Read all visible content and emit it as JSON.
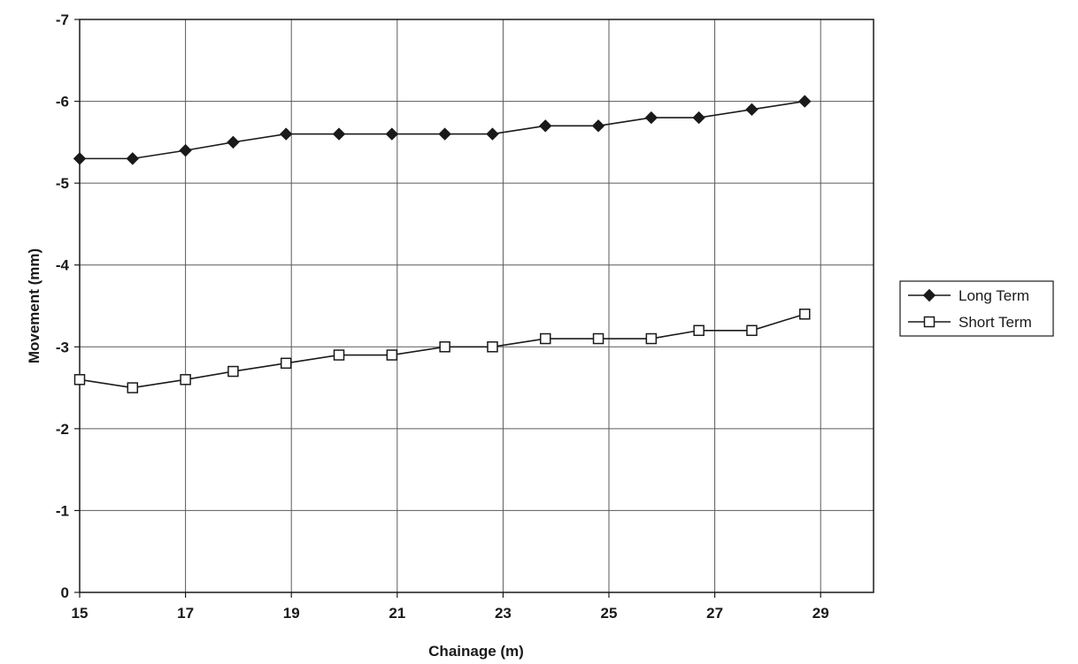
{
  "chart_data": {
    "type": "line",
    "title": "",
    "xlabel": "Chainage (m)",
    "ylabel": "Movement (mm)",
    "xlim": [
      15,
      30
    ],
    "ylim": [
      0,
      -7
    ],
    "x_ticks": [
      15,
      17,
      19,
      21,
      23,
      25,
      27,
      29
    ],
    "y_ticks": [
      0,
      -1,
      -2,
      -3,
      -4,
      -5,
      -6,
      -7
    ],
    "y_reversed": true,
    "grid": true,
    "legend_placement": "right",
    "series": [
      {
        "name": "Long Term",
        "marker": "filled-diamond",
        "color": "#1a1a1a",
        "x": [
          15,
          16,
          17,
          17.9,
          18.9,
          19.9,
          20.9,
          21.9,
          22.8,
          23.8,
          24.8,
          25.8,
          26.7,
          27.7,
          28.7
        ],
        "values": [
          -5.3,
          -5.3,
          -5.4,
          -5.5,
          -5.6,
          -5.6,
          -5.6,
          -5.6,
          -5.6,
          -5.7,
          -5.7,
          -5.8,
          -5.8,
          -5.9,
          -6.0
        ]
      },
      {
        "name": "Short Term",
        "marker": "open-square",
        "color": "#1a1a1a",
        "x": [
          15,
          16,
          17,
          17.9,
          18.9,
          19.9,
          20.9,
          21.9,
          22.8,
          23.8,
          24.8,
          25.8,
          26.7,
          27.7,
          28.7
        ],
        "values": [
          -2.6,
          -2.5,
          -2.6,
          -2.7,
          -2.8,
          -2.9,
          -2.9,
          -3.0,
          -3.0,
          -3.1,
          -3.1,
          -3.1,
          -3.2,
          -3.2,
          -3.4
        ]
      }
    ]
  }
}
